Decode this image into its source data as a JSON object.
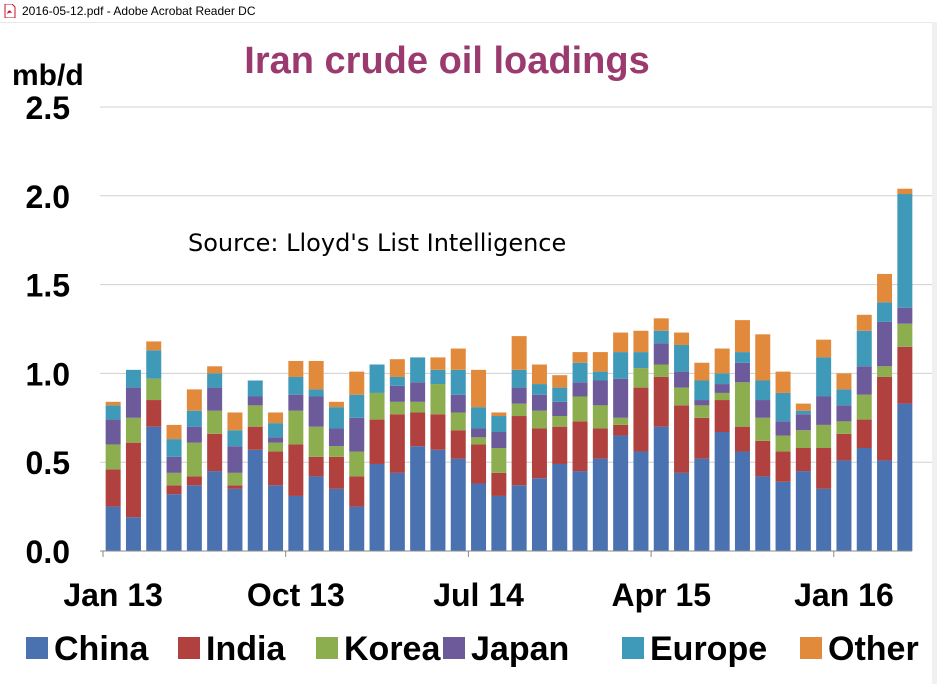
{
  "window": {
    "title": "2016-05-12.pdf - Adobe Acrobat Reader DC",
    "icon": "pdf-file-icon"
  },
  "colors": {
    "title": "#9B3A6E",
    "China": "#4A72B0",
    "India": "#B0413E",
    "Korea": "#8DAE4F",
    "Japan": "#6C5A9B",
    "Europe": "#3E9AB8",
    "Other": "#E28A3B",
    "grid": "#D0D0D0"
  },
  "chart_data": {
    "type": "bar",
    "stacked": true,
    "title": "Iran crude oil loadings",
    "ylabel": "mb/d",
    "annotation": "Source: Lloyd's List Intelligence",
    "ylim": [
      0,
      2.5
    ],
    "yticks": [
      "0.0",
      "0.5",
      "1.0",
      "1.5",
      "2.0",
      "2.5"
    ],
    "xtick_labels": [
      {
        "label": "Jan 13",
        "index": 0
      },
      {
        "label": "Oct 13",
        "index": 9
      },
      {
        "label": "Jul 14",
        "index": 18
      },
      {
        "label": "Apr 15",
        "index": 27
      },
      {
        "label": "Jan 16",
        "index": 36
      }
    ],
    "grid": true,
    "legend_position": "bottom",
    "n_bars": 40,
    "series": [
      {
        "name": "China",
        "values": [
          0.25,
          0.19,
          0.7,
          0.32,
          0.37,
          0.45,
          0.35,
          0.57,
          0.37,
          0.31,
          0.42,
          0.35,
          0.25,
          0.49,
          0.44,
          0.59,
          0.57,
          0.52,
          0.38,
          0.31,
          0.37,
          0.41,
          0.49,
          0.45,
          0.52,
          0.65,
          0.56,
          0.7,
          0.44,
          0.52,
          0.67,
          0.56,
          0.42,
          0.39,
          0.45,
          0.35,
          0.51,
          0.58,
          0.51,
          0.83
        ]
      },
      {
        "name": "India",
        "values": [
          0.21,
          0.42,
          0.15,
          0.05,
          0.05,
          0.21,
          0.02,
          0.13,
          0.19,
          0.29,
          0.11,
          0.18,
          0.17,
          0.25,
          0.33,
          0.19,
          0.2,
          0.16,
          0.22,
          0.13,
          0.39,
          0.28,
          0.21,
          0.28,
          0.17,
          0.06,
          0.36,
          0.28,
          0.38,
          0.23,
          0.18,
          0.14,
          0.2,
          0.17,
          0.13,
          0.23,
          0.15,
          0.16,
          0.47,
          0.32
        ]
      },
      {
        "name": "Korea",
        "values": [
          0.14,
          0.14,
          0.12,
          0.07,
          0.19,
          0.13,
          0.07,
          0.12,
          0.05,
          0.19,
          0.17,
          0.06,
          0.14,
          0.15,
          0.07,
          0.06,
          0.17,
          0.1,
          0.04,
          0.14,
          0.07,
          0.1,
          0.06,
          0.14,
          0.13,
          0.04,
          0.11,
          0.07,
          0.1,
          0.07,
          0.04,
          0.25,
          0.13,
          0.09,
          0.1,
          0.13,
          0.07,
          0.14,
          0.06,
          0.13
        ]
      },
      {
        "name": "Japan",
        "values": [
          0.14,
          0.17,
          0.0,
          0.09,
          0.09,
          0.13,
          0.15,
          0.05,
          0.03,
          0.09,
          0.17,
          0.1,
          0.19,
          0.0,
          0.09,
          0.11,
          0.0,
          0.1,
          0.05,
          0.09,
          0.09,
          0.09,
          0.08,
          0.08,
          0.14,
          0.22,
          0.0,
          0.12,
          0.09,
          0.03,
          0.05,
          0.11,
          0.1,
          0.08,
          0.09,
          0.16,
          0.09,
          0.16,
          0.25,
          0.09
        ]
      },
      {
        "name": "Europe",
        "values": [
          0.08,
          0.1,
          0.16,
          0.1,
          0.09,
          0.08,
          0.09,
          0.09,
          0.08,
          0.1,
          0.04,
          0.12,
          0.13,
          0.16,
          0.05,
          0.14,
          0.08,
          0.14,
          0.12,
          0.09,
          0.1,
          0.06,
          0.08,
          0.11,
          0.05,
          0.15,
          0.09,
          0.07,
          0.15,
          0.11,
          0.06,
          0.06,
          0.11,
          0.16,
          0.02,
          0.22,
          0.09,
          0.2,
          0.11,
          0.64
        ]
      },
      {
        "name": "Other",
        "values": [
          0.02,
          0.0,
          0.05,
          0.08,
          0.12,
          0.04,
          0.1,
          0.0,
          0.06,
          0.09,
          0.16,
          0.03,
          0.13,
          0.0,
          0.1,
          0.0,
          0.07,
          0.12,
          0.21,
          0.02,
          0.19,
          0.11,
          0.07,
          0.06,
          0.11,
          0.11,
          0.12,
          0.07,
          0.07,
          0.1,
          0.14,
          0.18,
          0.26,
          0.12,
          0.04,
          0.1,
          0.09,
          0.09,
          0.16,
          0.03
        ]
      }
    ]
  }
}
